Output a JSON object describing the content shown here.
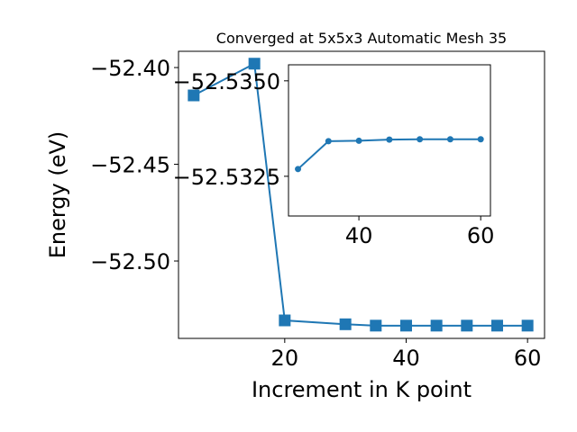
{
  "chart_data": [
    {
      "type": "line",
      "title": "Converged at 5x5x3 Automatic Mesh 35",
      "x_label": "Increment in K point",
      "y_label": "Energy (eV)",
      "x": [
        5,
        15,
        20,
        30,
        35,
        40,
        45,
        50,
        55,
        60
      ],
      "series": [
        {
          "color": "#1f77b4",
          "marker": "square",
          "values": [
            -52.4144,
            -52.398,
            -52.5307,
            -52.5327,
            -52.5334,
            -52.5334,
            -52.5334,
            -52.5334,
            -52.5334,
            -52.5334
          ]
        }
      ],
      "xlim": [
        2.5,
        62.8
      ],
      "ylim": [
        -52.54,
        -52.3916
      ],
      "xticks": [
        20,
        40,
        60
      ],
      "yticks": [
        {
          "value": -52.4,
          "label": "−52.40"
        },
        {
          "value": -52.45,
          "label": "−52.45"
        },
        {
          "value": -52.5,
          "label": "−52.50"
        }
      ]
    },
    {
      "type": "line",
      "x": [
        30,
        35,
        40,
        45,
        50,
        55,
        60
      ],
      "series": [
        {
          "color": "#1f77b4",
          "marker": "circle",
          "values": [
            -52.53269,
            -52.53342,
            -52.53343,
            -52.53346,
            -52.53347,
            -52.53347,
            -52.53347
          ]
        }
      ],
      "xlim": [
        28.44,
        61.6
      ],
      "ylim": [
        -52.53146,
        -52.53542
      ],
      "xticks": [
        40,
        60
      ],
      "yticks": [
        {
          "value": -52.535,
          "label": "−52.5350"
        },
        {
          "value": -52.5325,
          "label": "−52.5325"
        }
      ]
    }
  ]
}
